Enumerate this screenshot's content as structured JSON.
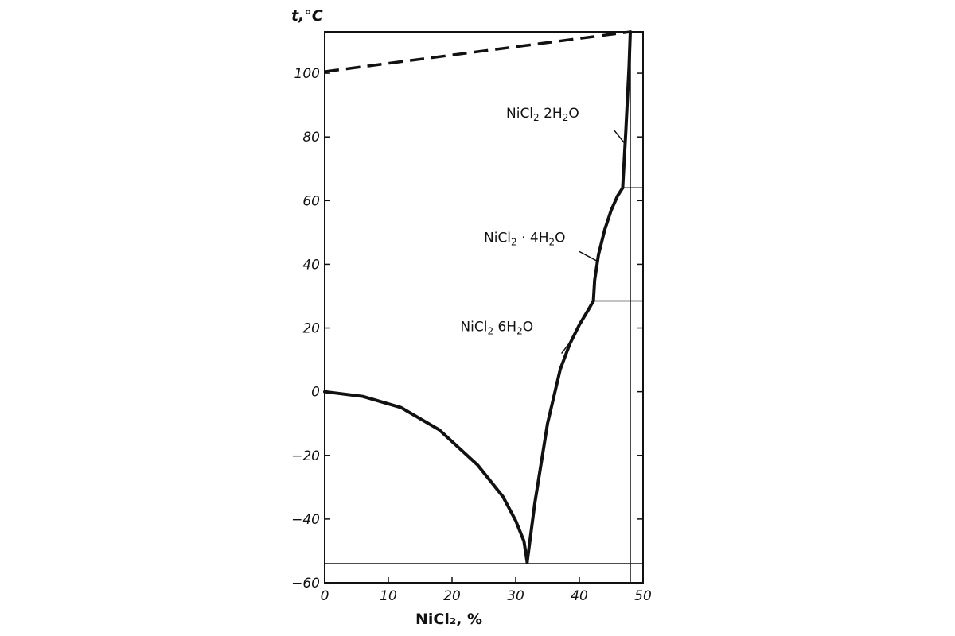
{
  "chart_data": {
    "type": "line",
    "title": "",
    "xlabel": "NiCl₂, %",
    "ylabel": "t,°C",
    "xlim": [
      0,
      50
    ],
    "ylim": [
      -60,
      113
    ],
    "xticks": [
      0,
      10,
      20,
      30,
      40,
      50
    ],
    "yticks": [
      -60,
      -40,
      -20,
      0,
      20,
      40,
      60,
      80,
      100
    ],
    "grid": false,
    "series": [
      {
        "style": "solid-thick",
        "x": [
          0,
          6,
          12,
          18,
          24,
          28,
          30,
          31.3,
          31.8
        ],
        "y": [
          0,
          -1.5,
          -5,
          -12,
          -23,
          -33,
          -40.5,
          -47,
          -53.5
        ]
      },
      {
        "name": "NiCl₂·6H₂O",
        "style": "solid-thick",
        "x": [
          31.8,
          33,
          35,
          37,
          38.5,
          40,
          41.5,
          42.2
        ],
        "y": [
          -53.5,
          -35,
          -10,
          7,
          15,
          21,
          26,
          28.5
        ]
      },
      {
        "name": "NiCl₂·4H₂O",
        "style": "solid-thick",
        "x": [
          42.2,
          42.4,
          43,
          44,
          45,
          46,
          46.8
        ],
        "y": [
          28.5,
          35,
          43,
          51,
          57,
          61.5,
          64
        ]
      },
      {
        "name": "NiCl₂·2H₂O",
        "style": "solid-thick",
        "x": [
          46.8,
          47.3,
          47.8,
          48
        ],
        "y": [
          64,
          82,
          102,
          113
        ]
      },
      {
        "style": "dashed",
        "x": [
          0,
          48
        ],
        "y": [
          100.5,
          113
        ]
      },
      {
        "style": "thin",
        "x": [
          0,
          50
        ],
        "y": [
          -54,
          -54
        ]
      },
      {
        "style": "thin",
        "x": [
          42.2,
          50
        ],
        "y": [
          28.5,
          28.5
        ]
      },
      {
        "style": "thin",
        "x": [
          46.8,
          50
        ],
        "y": [
          64,
          64
        ]
      },
      {
        "style": "thin",
        "x": [
          48,
          48
        ],
        "y": [
          -60,
          113
        ]
      }
    ],
    "annotations": [
      {
        "id": "hexa",
        "formula": "NiCl",
        "sub1": "2",
        "sep": " 6H",
        "sub2": "2",
        "tail": "O",
        "label_x": 21.3,
        "label_y": 19,
        "leader": [
          [
            37.2,
            12
          ],
          [
            38.9,
            16.5
          ]
        ]
      },
      {
        "id": "tetra",
        "formula": "NiCl",
        "sub1": "2",
        "sep": " · 4H",
        "sub2": "2",
        "tail": "O",
        "label_x": 25,
        "label_y": 47,
        "leader": [
          [
            40,
            44
          ],
          [
            42.8,
            41
          ]
        ]
      },
      {
        "id": "di",
        "formula": "NiCl",
        "sub1": "2",
        "sep": "  2H",
        "sub2": "2",
        "tail": "O",
        "label_x": 28.5,
        "label_y": 86,
        "leader": [
          [
            45.5,
            82
          ],
          [
            47.1,
            78
          ]
        ]
      }
    ]
  }
}
